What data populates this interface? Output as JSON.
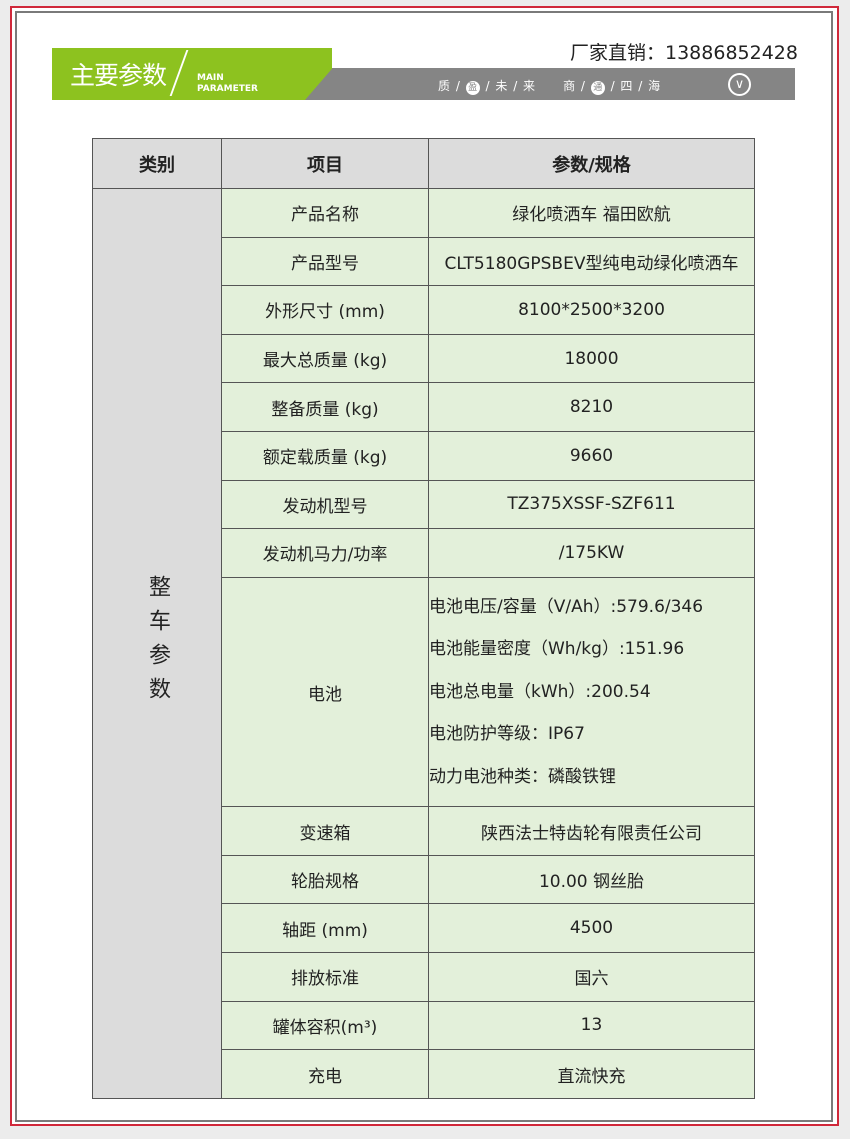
{
  "header": {
    "title": "主要参数",
    "subtitle_line1": "MAIN",
    "subtitle_line2": "PARAMETER",
    "phone": "厂家直销：13886852428",
    "slogan": [
      "质",
      "盈",
      "未",
      "来",
      "商",
      "通",
      "四",
      "海"
    ],
    "down_icon": "chevron-down-circle-icon"
  },
  "colors": {
    "green": "#8dc21f",
    "gray_band": "#858585",
    "frame_red": "#d0283a",
    "cell_bg": "#e3f0da",
    "header_bg": "#dcdcdc"
  },
  "table": {
    "headers": [
      "类别",
      "项目",
      "参数/规格"
    ],
    "category": "整车参数",
    "rows": [
      {
        "item": "产品名称",
        "value": "绿化喷洒车 福田欧航"
      },
      {
        "item": "产品型号",
        "value": "CLT5180GPSBEV型纯电动绿化喷洒车"
      },
      {
        "item": "外形尺寸 (mm)",
        "value": "8100*2500*3200"
      },
      {
        "item": "最大总质量 (kg)",
        "value": "18000"
      },
      {
        "item": "整备质量 (kg)",
        "value": "8210"
      },
      {
        "item": "额定载质量 (kg)",
        "value": "9660"
      },
      {
        "item": "发动机型号",
        "value": "TZ375XSSF-SZF611"
      },
      {
        "item": "发动机马力/功率",
        "value": "/175KW"
      }
    ],
    "battery": {
      "item": "电池",
      "lines": [
        "电池电压/容量（V/Ah）:579.6/346",
        "电池能量密度（Wh/kg）:151.96",
        "电池总电量（kWh）:200.54",
        "电池防护等级：IP67",
        "动力电池种类：磷酸铁锂"
      ]
    },
    "rows2": [
      {
        "item": "变速箱",
        "value": "陕西法士特齿轮有限责任公司"
      },
      {
        "item": "轮胎规格",
        "value": "10.00 钢丝胎"
      },
      {
        "item": "轴距 (mm)",
        "value": "4500"
      },
      {
        "item": "排放标准",
        "value": "国六"
      },
      {
        "item": "罐体容积(m³)",
        "value": "13"
      },
      {
        "item": "充电",
        "value": "直流快充"
      }
    ]
  }
}
